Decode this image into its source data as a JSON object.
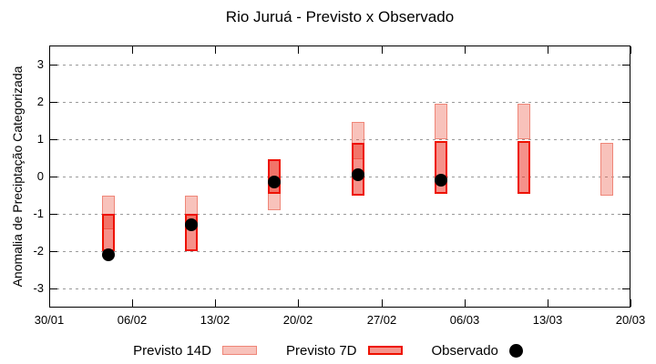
{
  "chart_data": {
    "type": "range-bar+scatter",
    "title": "Rio Juruá - Previsto x Observado",
    "ylabel": "Anomalia de Preciptação Categorizada",
    "ylim": [
      -3.5,
      3.5
    ],
    "yticks": [
      3,
      2,
      1,
      0,
      -1,
      -2,
      -3
    ],
    "grid": {
      "horizontal": true,
      "style": "dashed",
      "color": "#9a9a9a"
    },
    "legend_position": "bottom",
    "x_axis": {
      "unit": "days-from-30/01",
      "range": [
        0,
        49
      ]
    },
    "xticks": [
      {
        "day": 0,
        "label": "30/01"
      },
      {
        "day": 7,
        "label": "06/02"
      },
      {
        "day": 14,
        "label": "13/02"
      },
      {
        "day": 21,
        "label": "20/02"
      },
      {
        "day": 28,
        "label": "27/02"
      },
      {
        "day": 35,
        "label": "06/03"
      },
      {
        "day": 42,
        "label": "13/03"
      },
      {
        "day": 49,
        "label": "20/03"
      }
    ],
    "series": [
      {
        "name": "Previsto 14D",
        "type": "range_bar",
        "fill": "rgba(235,80,60,0.35)",
        "border": "#ef8678",
        "border_width": 1,
        "legend_fill": "#f8c2bb",
        "data": [
          {
            "day": 5,
            "low": -1.4,
            "high": -0.5
          },
          {
            "day": 12,
            "low": -1.3,
            "high": -0.5
          },
          {
            "day": 19,
            "low": -0.9,
            "high": 0.45
          },
          {
            "day": 26,
            "low": 0.45,
            "high": 1.45
          },
          {
            "day": 33,
            "low": 1.0,
            "high": 1.95
          },
          {
            "day": 40,
            "low": 1.0,
            "high": 1.95
          },
          {
            "day": 47,
            "low": -0.5,
            "high": 0.9
          }
        ]
      },
      {
        "name": "Previsto 7D",
        "type": "range_bar",
        "fill": "rgba(235,45,30,0.52)",
        "border": "#ee1100",
        "border_width": 2,
        "legend_fill": "#f4948d",
        "data": [
          {
            "day": 5,
            "low": -2.0,
            "high": -1.0
          },
          {
            "day": 12,
            "low": -2.0,
            "high": -1.0
          },
          {
            "day": 19,
            "low": -0.45,
            "high": 0.45
          },
          {
            "day": 26,
            "low": -0.5,
            "high": 0.9
          },
          {
            "day": 33,
            "low": -0.45,
            "high": 0.95
          },
          {
            "day": 40,
            "low": -0.45,
            "high": 0.95
          }
        ]
      },
      {
        "name": "Observado",
        "type": "scatter",
        "color": "#000000",
        "data": [
          {
            "day": 5,
            "value": -2.1
          },
          {
            "day": 12,
            "value": -1.3
          },
          {
            "day": 19,
            "value": -0.15
          },
          {
            "day": 26,
            "value": 0.05
          },
          {
            "day": 33,
            "value": -0.1
          }
        ]
      }
    ]
  }
}
